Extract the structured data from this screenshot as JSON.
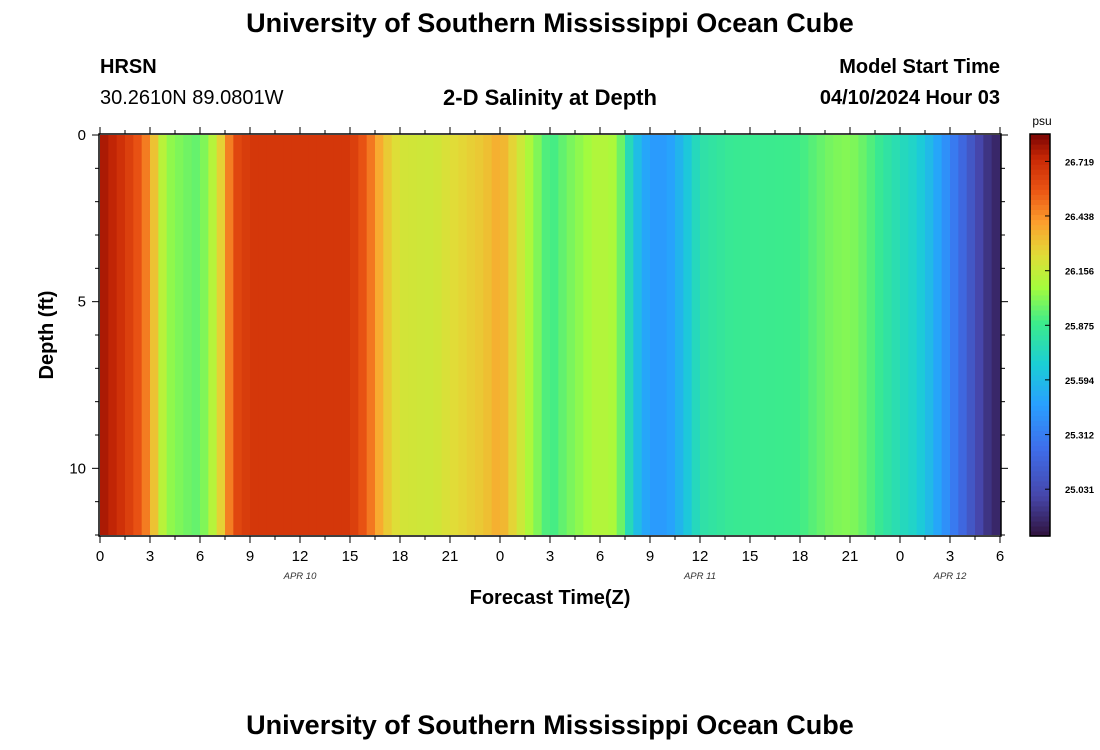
{
  "header": {
    "title": "University of Southern Mississippi Ocean Cube",
    "station": "HRSN",
    "coords": "30.2610N  89.0801W",
    "plot_title": "2-D Salinity at Depth",
    "model_start_label": "Model Start Time",
    "model_start_value": "04/10/2024 Hour 03"
  },
  "footer": {
    "title": "University of Southern Mississippi Ocean Cube"
  },
  "chart_data": {
    "type": "heatmap",
    "title": "2-D Salinity at Depth",
    "xlabel": "Forecast Time(Z)",
    "ylabel": "Depth (ft)",
    "x_ticks": [
      "0",
      "3",
      "6",
      "9",
      "12",
      "15",
      "18",
      "21",
      "0",
      "3",
      "6",
      "9",
      "12",
      "15",
      "18",
      "21",
      "0",
      "3",
      "6"
    ],
    "x_range_hours": [
      0,
      54
    ],
    "date_labels": [
      {
        "hour": 12,
        "label": "APR 10"
      },
      {
        "hour": 36,
        "label": "APR 11"
      },
      {
        "hour": 51,
        "label": "APR 12"
      }
    ],
    "y_ticks": [
      0,
      5,
      10
    ],
    "y_range_ft": [
      0,
      12
    ],
    "colorbar": {
      "unit": "psu",
      "range": [
        24.79,
        26.86
      ],
      "ticks": [
        25.031,
        25.312,
        25.594,
        25.875,
        26.156,
        26.438,
        26.719
      ]
    },
    "time_step_hours": 0.5,
    "salinity_by_hour": [
      [
        0,
        26.8
      ],
      [
        1,
        26.73
      ],
      [
        2,
        26.62
      ],
      [
        2.5,
        26.55
      ],
      [
        3,
        26.42
      ],
      [
        3.5,
        26.2
      ],
      [
        4,
        26.05
      ],
      [
        5,
        25.99
      ],
      [
        6,
        25.95
      ],
      [
        7,
        26.18
      ],
      [
        7.5,
        26.36
      ],
      [
        8,
        26.6
      ],
      [
        9,
        26.68
      ],
      [
        15,
        26.68
      ],
      [
        16,
        26.55
      ],
      [
        17,
        26.32
      ],
      [
        18,
        26.2
      ],
      [
        20,
        26.18
      ],
      [
        21,
        26.23
      ],
      [
        23,
        26.3
      ],
      [
        24,
        26.38
      ],
      [
        25,
        26.22
      ],
      [
        26,
        26.05
      ],
      [
        27,
        25.88
      ],
      [
        28,
        25.98
      ],
      [
        30,
        26.12
      ],
      [
        31,
        26.08
      ],
      [
        32,
        25.65
      ],
      [
        33,
        25.45
      ],
      [
        34,
        25.45
      ],
      [
        35,
        25.6
      ],
      [
        36,
        25.8
      ],
      [
        38,
        25.87
      ],
      [
        42,
        25.89
      ],
      [
        43,
        25.95
      ],
      [
        44,
        26.0
      ],
      [
        45,
        26.02
      ],
      [
        46,
        25.95
      ],
      [
        47,
        25.84
      ],
      [
        48,
        25.76
      ],
      [
        49,
        25.7
      ],
      [
        50,
        25.55
      ],
      [
        51,
        25.35
      ],
      [
        52,
        25.15
      ],
      [
        53,
        24.95
      ],
      [
        54,
        24.85
      ]
    ]
  }
}
